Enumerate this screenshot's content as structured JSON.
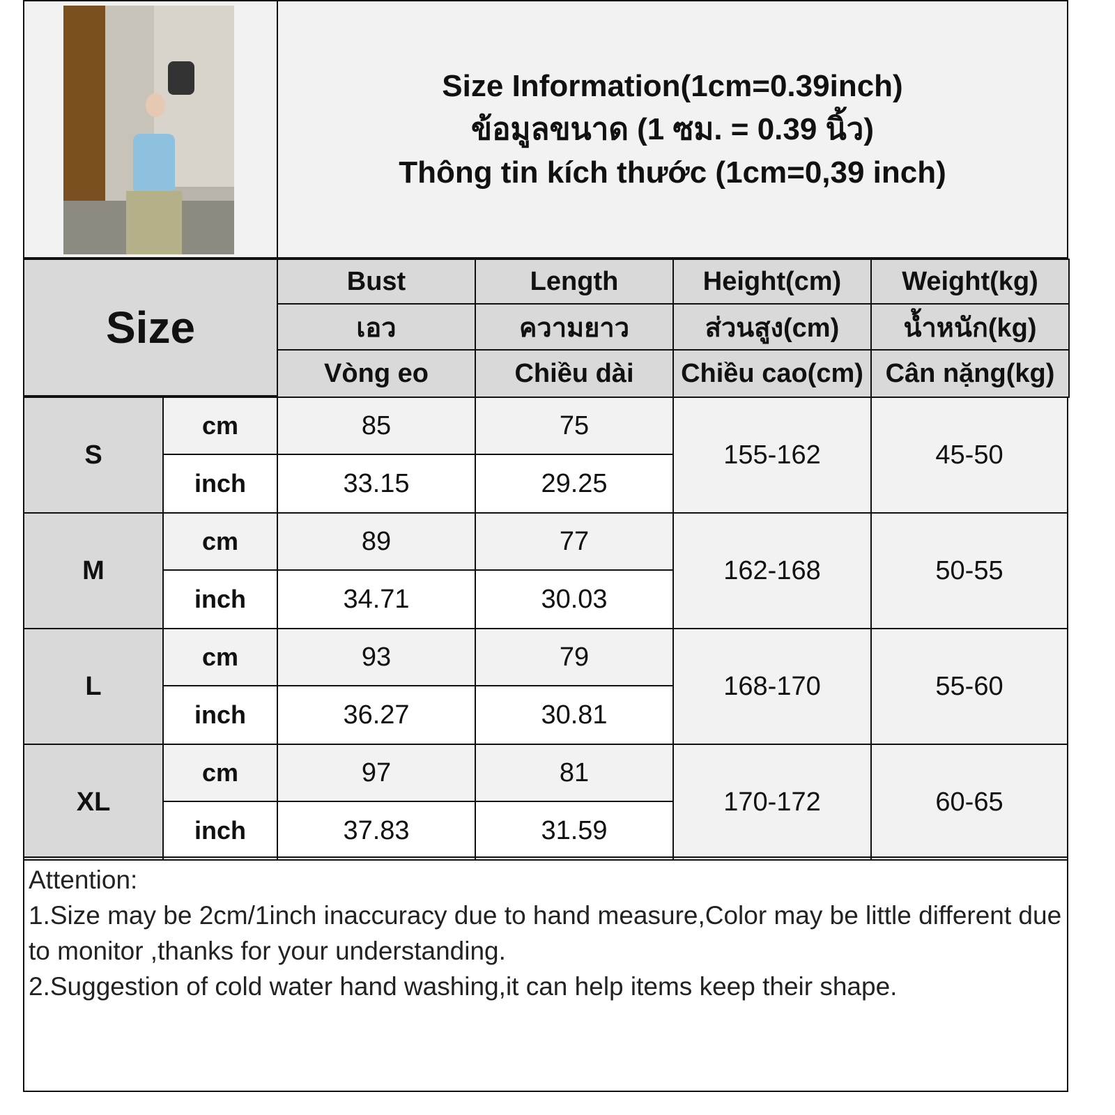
{
  "title": {
    "line_en": "Size Information(1cm=0.39inch)",
    "line_th": "ข้อมูลขนาด (1 ซม. = 0.39 นิ้ว)",
    "line_vi": "Thông tin kích thước (1cm=0,39 inch)"
  },
  "photo": {
    "description_icon": "product-photo-woman-blue-top"
  },
  "table": {
    "size_label": "Size",
    "columns": [
      {
        "en": "Bust",
        "th": "เอว",
        "vi": "Vòng eo"
      },
      {
        "en": "Length",
        "th": "ความยาว",
        "vi": "Chiều dài"
      },
      {
        "en": "Height(cm)",
        "th": "ส่วนสูง(cm)",
        "vi": "Chiều cao(cm)"
      },
      {
        "en": "Weight(kg)",
        "th": "น้ำหนัก(kg)",
        "vi": "Cân nặng(kg)"
      }
    ],
    "unit_cm": "cm",
    "unit_inch": "inch",
    "rows": [
      {
        "size": "S",
        "bust_cm": "85",
        "length_cm": "75",
        "bust_inch": "33.15",
        "length_inch": "29.25",
        "height": "155-162",
        "weight": "45-50"
      },
      {
        "size": "M",
        "bust_cm": "89",
        "length_cm": "77",
        "bust_inch": "34.71",
        "length_inch": "30.03",
        "height": "162-168",
        "weight": "50-55"
      },
      {
        "size": "L",
        "bust_cm": "93",
        "length_cm": "79",
        "bust_inch": "36.27",
        "length_inch": "30.81",
        "height": "168-170",
        "weight": "55-60"
      },
      {
        "size": "XL",
        "bust_cm": "97",
        "length_cm": "81",
        "bust_inch": "37.83",
        "length_inch": "31.59",
        "height": "170-172",
        "weight": "60-65"
      }
    ]
  },
  "notes": {
    "heading": "Attention:",
    "items": [
      "1.Size may be 2cm/1inch inaccuracy due to hand measure,Color may be little different due to monitor ,thanks for your understanding.",
      "2.Suggestion of cold water hand washing,it can help items keep their shape."
    ]
  }
}
